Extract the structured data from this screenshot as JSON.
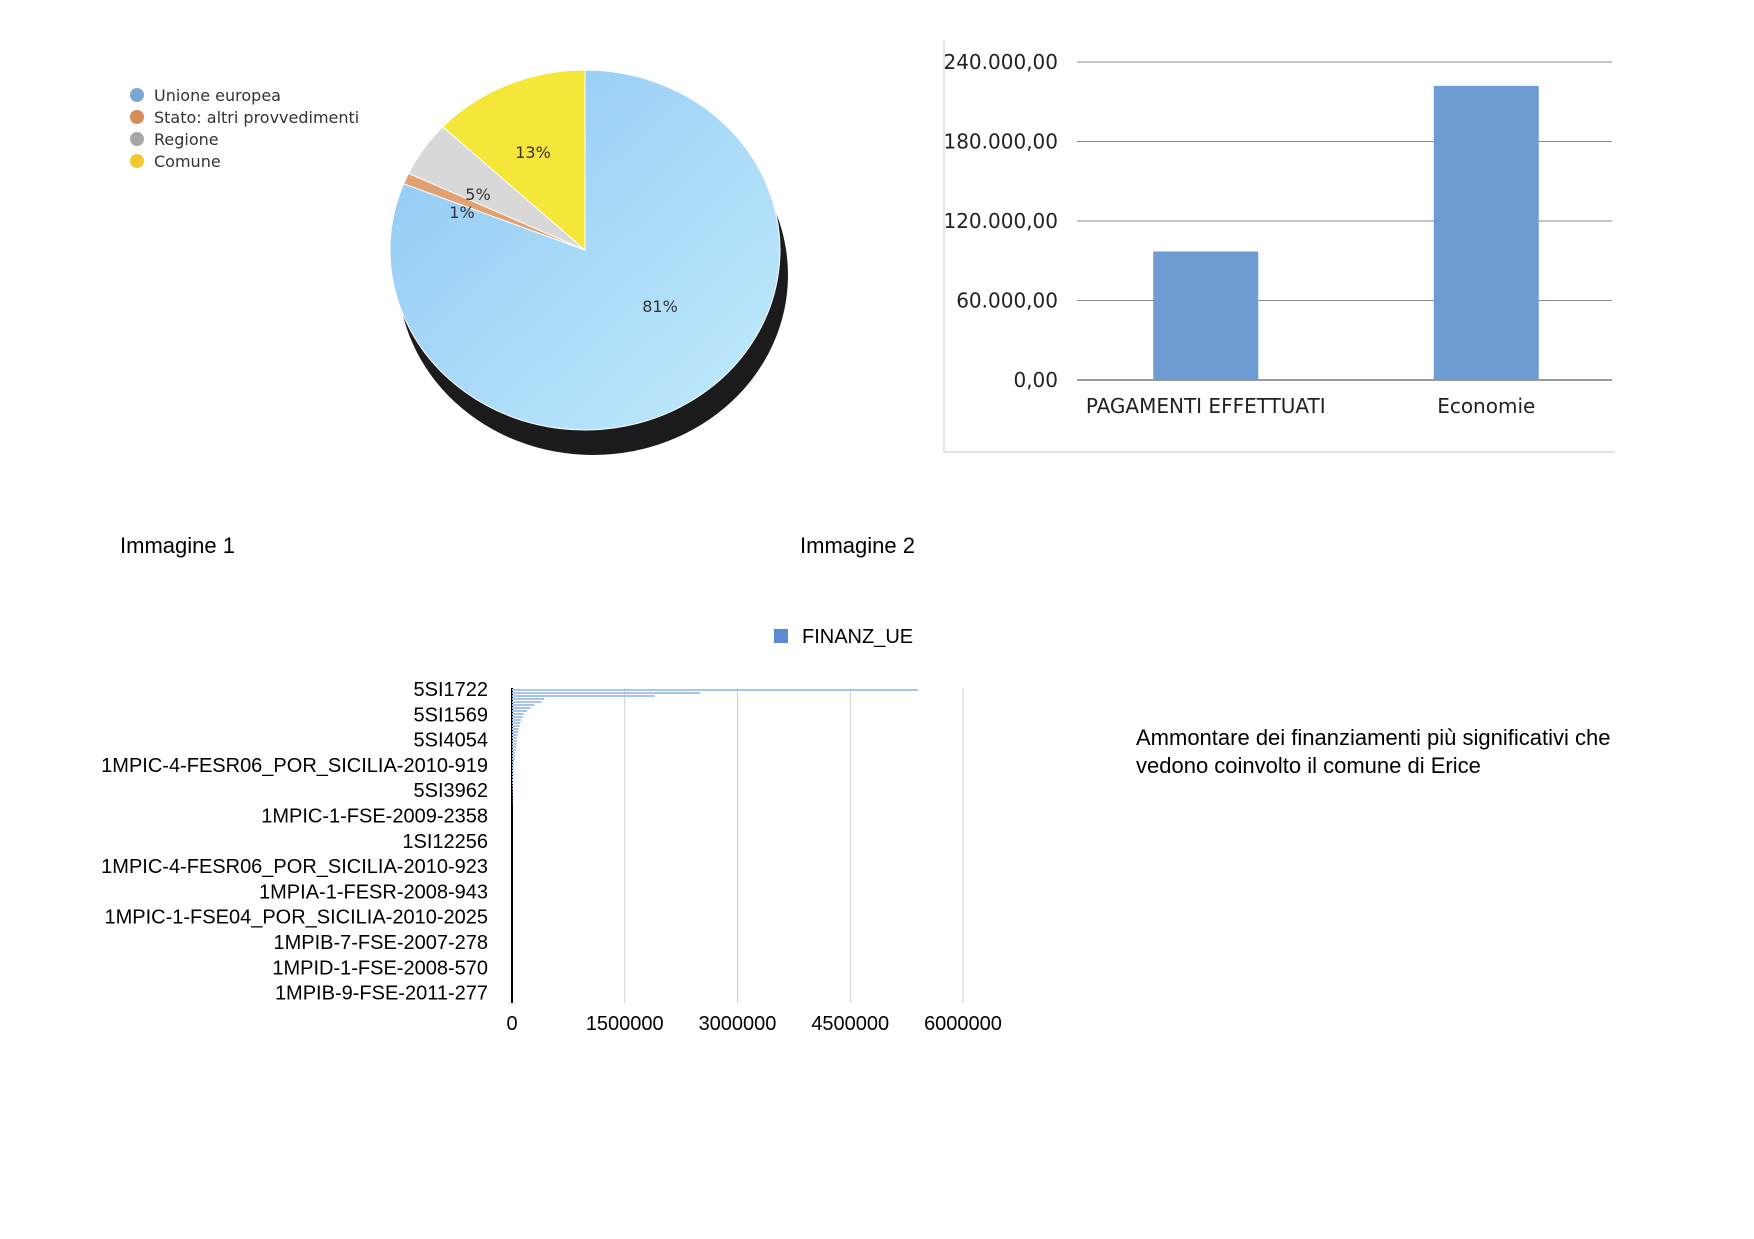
{
  "captions": {
    "image1": "Immagine 1",
    "image2": "Immagine 2"
  },
  "note": {
    "line1": "Ammontare dei finanziamenti più significativi che",
    "line2": "vedono coinvolto il comune di Erice"
  },
  "chart_data": [
    {
      "type": "pie",
      "title": "",
      "legend_position": "top-left",
      "slices": [
        {
          "label": "Unione europea",
          "value": 81,
          "display": "81%",
          "color": "#9ccef7"
        },
        {
          "label": "Stato: altri provvedimenti",
          "value": 1,
          "display": "1%",
          "color": "#e0a070"
        },
        {
          "label": "Regione",
          "value": 5,
          "display": "5%",
          "color": "#d8d8d8"
        },
        {
          "label": "Comune",
          "value": 13,
          "display": "13%",
          "color": "#f5e63a"
        }
      ]
    },
    {
      "type": "bar",
      "title": "",
      "categories": [
        "PAGAMENTI EFFETTUATI",
        "Economie"
      ],
      "values": [
        97000,
        222000
      ],
      "ylim": [
        0,
        240000
      ],
      "yticks": [
        0,
        60000,
        120000,
        180000,
        240000
      ],
      "ytick_labels": [
        "0,00",
        "60.000,00",
        "120.000,00",
        "180.000,00",
        "240.000,00"
      ],
      "color": "#6f9bd3",
      "grid": true
    },
    {
      "type": "bar",
      "orientation": "horizontal",
      "title": "",
      "legend_position": "top",
      "series": [
        {
          "name": "FINANZ_UE",
          "color": "#a8c4ea",
          "values": [
            5400000,
            2500000,
            1900000,
            430000,
            390000,
            300000,
            250000,
            200000,
            160000,
            140000,
            120000,
            110000,
            100000,
            90000,
            80000,
            75000,
            70000,
            65000,
            60000,
            55000,
            50000,
            45000,
            40000,
            35000,
            30000,
            28000,
            25000,
            22000,
            20000,
            18000,
            15000,
            12000,
            10000,
            8000,
            6000,
            5000,
            4000,
            3000,
            2000,
            1000
          ]
        }
      ],
      "category_labels": [
        "5SI1722",
        "5SI1569",
        "5SI4054",
        "1MPIC-4-FESR06_POR_SICILIA-2010-919",
        "5SI3962",
        "1MPIC-1-FSE-2009-2358",
        "1SI12256",
        "1MPIC-4-FESR06_POR_SICILIA-2010-923",
        "1MPIA-1-FESR-2008-943",
        "1MPIC-1-FSE04_POR_SICILIA-2010-2025",
        "1MPIB-7-FSE-2007-278",
        "1MPID-1-FSE-2008-570",
        "1MPIB-9-FSE-2011-277"
      ],
      "xlim": [
        0,
        6000000
      ],
      "xticks": [
        0,
        1500000,
        3000000,
        4500000,
        6000000
      ],
      "xtick_labels": [
        "0",
        "1500000",
        "3000000",
        "4500000",
        "6000000"
      ],
      "grid": true
    }
  ]
}
